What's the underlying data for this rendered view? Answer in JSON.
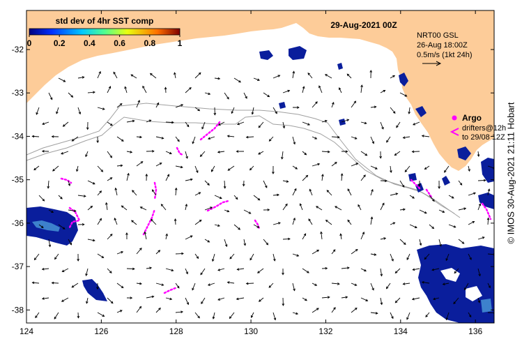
{
  "map": {
    "date_title": "29-Aug-2021 00Z",
    "colorbar": {
      "title": "std dev of 4hr SST comp",
      "ticks": [
        "0",
        "0.2",
        "0.4",
        "0.6",
        "0.8",
        "1"
      ],
      "colors": [
        "#00007f",
        "#0030ff",
        "#00c8ff",
        "#50ff90",
        "#e8ff10",
        "#ff7000",
        "#7f0000"
      ]
    },
    "current_legend": {
      "line1": "NRT00 GSL",
      "line2": "26-Aug 18:00Z",
      "line3": "0.5m/s (1kt 24h)"
    },
    "argo_legend": {
      "label": "Argo",
      "drifters_line1": "drifters@12h",
      "drifters_line2": "to 29/08 12Z"
    },
    "x_axis": {
      "ticks": [
        "124",
        "126",
        "128",
        "130",
        "132",
        "134",
        "136"
      ],
      "values": [
        124,
        126,
        128,
        130,
        132,
        134,
        136
      ]
    },
    "y_axis": {
      "ticks": [
        "-32",
        "-33",
        "-34",
        "-35",
        "-36",
        "-37",
        "-38"
      ],
      "values": [
        -32,
        -33,
        -34,
        -35,
        -36,
        -37,
        -38
      ]
    },
    "lon_range": [
      124,
      136.5
    ],
    "lat_range": [
      -31.1,
      -38.3
    ],
    "credit": "© IMOS 30-Aug-2021 21:11 Hobart",
    "land_color": "#fdcc99",
    "drifter_color": "#ff00ff",
    "contour_color": "#a0a0a0"
  }
}
